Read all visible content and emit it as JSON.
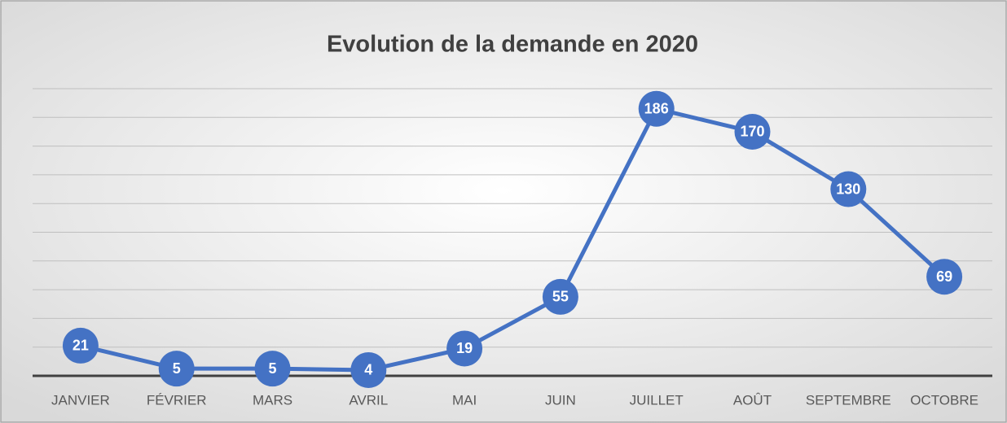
{
  "chart_data": {
    "type": "line",
    "title": "Evolution de la demande en 2020",
    "categories": [
      "JANVIER",
      "FÉVRIER",
      "MARS",
      "AVRIL",
      "MAI",
      "JUIN",
      "JUILLET",
      "AOÛT",
      "SEPTEMBRE",
      "OCTOBRE"
    ],
    "values": [
      21,
      5,
      5,
      4,
      19,
      55,
      186,
      170,
      130,
      69
    ],
    "color": "#4472c4",
    "ylim": [
      0,
      200
    ],
    "yticks": [
      0,
      20,
      40,
      60,
      80,
      100,
      120,
      140,
      160,
      180,
      200
    ],
    "grid": true
  }
}
